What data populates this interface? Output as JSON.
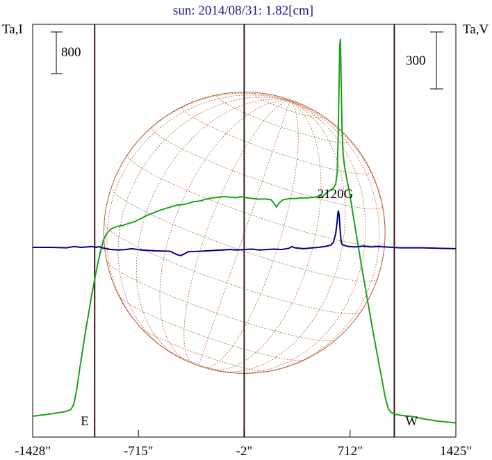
{
  "chart_data": {
    "type": "line",
    "title": "sun: 2014/08/31: 1.82[cm]",
    "left_axis_label": "Ta,I",
    "right_axis_label": "Ta,V",
    "scale_bar_left": "800",
    "scale_bar_right": "300",
    "xlim": [
      -1428,
      1425
    ],
    "x_ticks": [
      {
        "value": -1428,
        "label": "-1428\""
      },
      {
        "value": -715,
        "label": "-715\""
      },
      {
        "value": -2,
        "label": "-2\""
      },
      {
        "value": 712,
        "label": "712\""
      },
      {
        "value": 1425,
        "label": "1425\""
      }
    ],
    "markers": [
      {
        "x": -1010,
        "label": "E"
      },
      {
        "x": -2,
        "label": ""
      },
      {
        "x": 1010,
        "label": "W"
      }
    ],
    "annotations": [
      {
        "x": 640,
        "label": "2120G"
      }
    ],
    "solar_disk": {
      "radius_arcsec": 948,
      "color": "#b85c30",
      "grid": "dotted"
    },
    "series": [
      {
        "color": "#1aa01a",
        "data": [
          [
            -1428,
            0
          ],
          [
            -1330,
            30
          ],
          [
            -1250,
            60
          ],
          [
            -1200,
            80
          ],
          [
            -1170,
            110
          ],
          [
            -1150,
            200
          ],
          [
            -1130,
            450
          ],
          [
            -1110,
            800
          ],
          [
            -1090,
            1100
          ],
          [
            -1070,
            1420
          ],
          [
            -1050,
            1700
          ],
          [
            -1030,
            2000
          ],
          [
            -1010,
            2250
          ],
          [
            -990,
            2500
          ],
          [
            -970,
            2720
          ],
          [
            -950,
            2900
          ],
          [
            -930,
            3000
          ],
          [
            -900,
            3080
          ],
          [
            -860,
            3120
          ],
          [
            -820,
            3140
          ],
          [
            -780,
            3170
          ],
          [
            -740,
            3200
          ],
          [
            -700,
            3250
          ],
          [
            -660,
            3300
          ],
          [
            -620,
            3340
          ],
          [
            -580,
            3380
          ],
          [
            -540,
            3410
          ],
          [
            -500,
            3440
          ],
          [
            -460,
            3470
          ],
          [
            -420,
            3480
          ],
          [
            -380,
            3500
          ],
          [
            -340,
            3530
          ],
          [
            -300,
            3540
          ],
          [
            -260,
            3570
          ],
          [
            -220,
            3590
          ],
          [
            -180,
            3600
          ],
          [
            -140,
            3610
          ],
          [
            -100,
            3605
          ],
          [
            -60,
            3595
          ],
          [
            -20,
            3610
          ],
          [
            20,
            3590
          ],
          [
            60,
            3580
          ],
          [
            100,
            3570
          ],
          [
            140,
            3575
          ],
          [
            180,
            3560
          ],
          [
            200,
            3500
          ],
          [
            215,
            3440
          ],
          [
            235,
            3510
          ],
          [
            260,
            3560
          ],
          [
            300,
            3580
          ],
          [
            340,
            3580
          ],
          [
            380,
            3590
          ],
          [
            420,
            3590
          ],
          [
            460,
            3600
          ],
          [
            490,
            3610
          ],
          [
            510,
            3640
          ],
          [
            530,
            3610
          ],
          [
            540,
            3650
          ],
          [
            560,
            3690
          ],
          [
            580,
            3720
          ],
          [
            600,
            3750
          ],
          [
            615,
            3820
          ],
          [
            625,
            4000
          ],
          [
            632,
            4600
          ],
          [
            638,
            5500
          ],
          [
            642,
            6100
          ],
          [
            647,
            6200
          ],
          [
            652,
            5500
          ],
          [
            658,
            4700
          ],
          [
            665,
            4300
          ],
          [
            675,
            4100
          ],
          [
            690,
            3900
          ],
          [
            710,
            3650
          ],
          [
            730,
            3350
          ],
          [
            750,
            3050
          ],
          [
            770,
            2750
          ],
          [
            790,
            2450
          ],
          [
            810,
            2180
          ],
          [
            830,
            1900
          ],
          [
            850,
            1620
          ],
          [
            870,
            1350
          ],
          [
            890,
            1080
          ],
          [
            910,
            820
          ],
          [
            930,
            560
          ],
          [
            950,
            300
          ],
          [
            970,
            120
          ],
          [
            990,
            60
          ],
          [
            1020,
            30
          ],
          [
            1070,
            10
          ],
          [
            1120,
            0
          ],
          [
            1200,
            -40
          ],
          [
            1300,
            -80
          ],
          [
            1425,
            -110
          ]
        ]
      },
      {
        "color": "#000088",
        "data": [
          [
            -1428,
            0
          ],
          [
            -1300,
            0
          ],
          [
            -1200,
            -5
          ],
          [
            -1150,
            10
          ],
          [
            -1100,
            0
          ],
          [
            -1030,
            10
          ],
          [
            -1000,
            0
          ],
          [
            -980,
            10
          ],
          [
            -960,
            -5
          ],
          [
            -900,
            -25
          ],
          [
            -850,
            -30
          ],
          [
            -800,
            -25
          ],
          [
            -760,
            -15
          ],
          [
            -700,
            -30
          ],
          [
            -600,
            -40
          ],
          [
            -500,
            -45
          ],
          [
            -460,
            -80
          ],
          [
            -430,
            -95
          ],
          [
            -400,
            -70
          ],
          [
            -380,
            -50
          ],
          [
            -300,
            -45
          ],
          [
            -250,
            -40
          ],
          [
            -150,
            -30
          ],
          [
            -100,
            -25
          ],
          [
            -50,
            -30
          ],
          [
            0,
            -25
          ],
          [
            50,
            -20
          ],
          [
            100,
            -30
          ],
          [
            150,
            -25
          ],
          [
            200,
            -20
          ],
          [
            250,
            -25
          ],
          [
            300,
            -10
          ],
          [
            320,
            10
          ],
          [
            340,
            -5
          ],
          [
            400,
            -15
          ],
          [
            460,
            -5
          ],
          [
            500,
            0
          ],
          [
            540,
            10
          ],
          [
            580,
            25
          ],
          [
            600,
            60
          ],
          [
            615,
            160
          ],
          [
            625,
            300
          ],
          [
            630,
            400
          ],
          [
            633,
            420
          ],
          [
            638,
            380
          ],
          [
            645,
            200
          ],
          [
            652,
            60
          ],
          [
            660,
            30
          ],
          [
            680,
            20
          ],
          [
            700,
            10
          ],
          [
            750,
            5
          ],
          [
            800,
            15
          ],
          [
            850,
            5
          ],
          [
            900,
            10
          ],
          [
            950,
            5
          ],
          [
            1000,
            0
          ],
          [
            1050,
            -5
          ],
          [
            1100,
            -5
          ],
          [
            1200,
            -5
          ],
          [
            1300,
            -10
          ],
          [
            1425,
            -15
          ]
        ]
      }
    ]
  }
}
